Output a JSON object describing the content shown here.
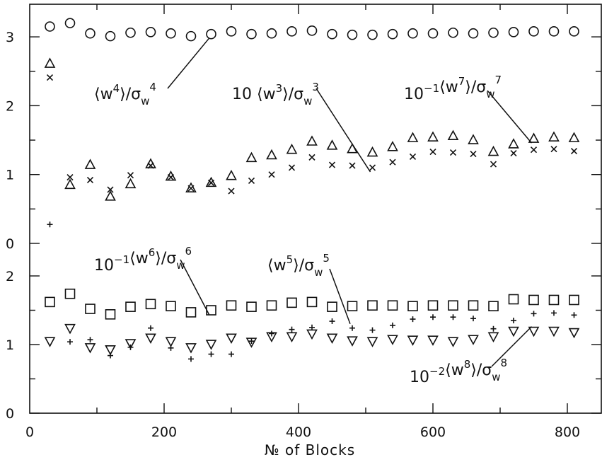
{
  "chart_data": [
    {
      "type": "scatter",
      "panel": "upper",
      "xlabel": "№ of Blocks",
      "xlim": [
        0,
        850
      ],
      "ylim": [
        0,
        3.4
      ],
      "x_ticks": [
        "0",
        "200",
        "400",
        "600",
        "800"
      ],
      "y_ticks": [
        "0",
        "1",
        "2",
        "3"
      ],
      "grid": false,
      "series": [
        {
          "name": "⟨w⁴⟩/σ_w⁴",
          "marker": "circle",
          "x": [
            30,
            60,
            90,
            120,
            150,
            180,
            210,
            240,
            270,
            300,
            330,
            360,
            390,
            420,
            450,
            480,
            510,
            540,
            570,
            600,
            630,
            660,
            690,
            720,
            750,
            780,
            810
          ],
          "y": [
            3.15,
            3.2,
            3.05,
            3.01,
            3.06,
            3.07,
            3.05,
            3.01,
            3.04,
            3.08,
            3.04,
            3.05,
            3.08,
            3.09,
            3.04,
            3.03,
            3.03,
            3.04,
            3.05,
            3.05,
            3.06,
            3.05,
            3.06,
            3.07,
            3.08,
            3.08,
            3.08
          ]
        },
        {
          "name": "10 ⟨w³⟩/σ_w³",
          "marker": "cross",
          "x": [
            30,
            60,
            90,
            120,
            150,
            180,
            210,
            240,
            270,
            300,
            330,
            360,
            390,
            420,
            450,
            480,
            510,
            540,
            570,
            600,
            630,
            660,
            690,
            720,
            750,
            780,
            810
          ],
          "y": [
            2.41,
            0.96,
            0.92,
            0.78,
            0.99,
            1.13,
            0.96,
            0.8,
            0.88,
            0.76,
            0.91,
            1.0,
            1.1,
            1.25,
            1.14,
            1.13,
            1.1,
            1.18,
            1.26,
            1.33,
            1.32,
            1.3,
            1.15,
            1.31,
            1.36,
            1.37,
            1.34
          ]
        },
        {
          "name": "10⁻¹ ⟨w⁷⟩/σ_w⁷",
          "marker": "triangle-up",
          "x": [
            30,
            60,
            90,
            120,
            150,
            180,
            210,
            240,
            270,
            300,
            330,
            360,
            390,
            420,
            450,
            480,
            510,
            540,
            570,
            600,
            630,
            660,
            690,
            720,
            750,
            780,
            810
          ],
          "y": [
            2.61,
            0.85,
            1.14,
            0.68,
            0.86,
            1.15,
            0.97,
            0.8,
            0.88,
            0.98,
            1.24,
            1.28,
            1.36,
            1.48,
            1.42,
            1.37,
            1.32,
            1.4,
            1.53,
            1.54,
            1.56,
            1.5,
            1.33,
            1.44,
            1.52,
            1.54,
            1.53
          ]
        }
      ]
    },
    {
      "type": "scatter",
      "panel": "lower",
      "xlabel": "№ of Blocks",
      "xlim": [
        0,
        850
      ],
      "ylim": [
        0,
        2.4
      ],
      "x_ticks": [
        "0",
        "200",
        "400",
        "600",
        "800"
      ],
      "y_ticks": [
        "0",
        "1",
        "2"
      ],
      "grid": false,
      "series": [
        {
          "name": "⟨w⁵⟩/σ_w⁵",
          "marker": "plus",
          "x": [
            30,
            60,
            90,
            120,
            150,
            180,
            210,
            240,
            270,
            300,
            330,
            360,
            390,
            420,
            450,
            480,
            510,
            540,
            570,
            600,
            630,
            660,
            690,
            720,
            750,
            780,
            810
          ],
          "y": [
            2.75,
            1.04,
            1.07,
            0.84,
            0.96,
            1.24,
            0.95,
            0.79,
            0.86,
            0.86,
            1.05,
            1.16,
            1.22,
            1.25,
            1.34,
            1.24,
            1.21,
            1.28,
            1.37,
            1.4,
            1.4,
            1.38,
            1.23,
            1.35,
            1.45,
            1.46,
            1.43
          ]
        },
        {
          "name": "10⁻¹ ⟨w⁶⟩/σ_w⁶",
          "marker": "square",
          "x": [
            30,
            60,
            90,
            120,
            150,
            180,
            210,
            240,
            270,
            300,
            330,
            360,
            390,
            420,
            450,
            480,
            510,
            540,
            570,
            600,
            630,
            660,
            690,
            720,
            750,
            780,
            810
          ],
          "y": [
            1.62,
            1.74,
            1.52,
            1.44,
            1.55,
            1.59,
            1.56,
            1.47,
            1.5,
            1.57,
            1.55,
            1.57,
            1.61,
            1.62,
            1.55,
            1.56,
            1.57,
            1.57,
            1.56,
            1.57,
            1.57,
            1.57,
            1.56,
            1.66,
            1.65,
            1.65,
            1.65
          ]
        },
        {
          "name": "10⁻² ⟨w⁸⟩/σ_w⁸",
          "marker": "triangle-down",
          "x": [
            30,
            60,
            90,
            120,
            150,
            180,
            210,
            240,
            270,
            300,
            330,
            360,
            390,
            420,
            450,
            480,
            510,
            540,
            570,
            600,
            630,
            660,
            690,
            720,
            750,
            780,
            810
          ],
          "y": [
            1.05,
            1.24,
            0.96,
            0.93,
            1.02,
            1.1,
            1.05,
            0.96,
            1.01,
            1.1,
            1.04,
            1.12,
            1.12,
            1.16,
            1.1,
            1.06,
            1.05,
            1.08,
            1.07,
            1.07,
            1.05,
            1.08,
            1.12,
            1.2,
            1.2,
            1.2,
            1.18
          ]
        }
      ]
    }
  ],
  "annotations": [
    {
      "id": "w4",
      "pre": "",
      "pre_sup": "",
      "moment": "4",
      "sigma_exp": "4",
      "target": [
        0,
        8
      ]
    },
    {
      "id": "w3",
      "pre": "10",
      "pre_sup": "",
      "moment": "3",
      "sigma_exp": "3",
      "target": [
        0,
        16
      ]
    },
    {
      "id": "w7",
      "pre": "10",
      "pre_sup": "−1",
      "moment": "7",
      "sigma_exp": "7",
      "target": [
        2,
        24
      ]
    },
    {
      "id": "w6",
      "pre": "10",
      "pre_sup": "−1",
      "moment": "6",
      "sigma_exp": "6",
      "target": [
        1,
        8
      ]
    },
    {
      "id": "w5",
      "pre": "",
      "pre_sup": "",
      "moment": "5",
      "sigma_exp": "5",
      "target": [
        0,
        15
      ]
    },
    {
      "id": "w8",
      "pre": "10",
      "pre_sup": "−2",
      "moment": "8",
      "sigma_exp": "8",
      "target": [
        2,
        24
      ]
    }
  ]
}
